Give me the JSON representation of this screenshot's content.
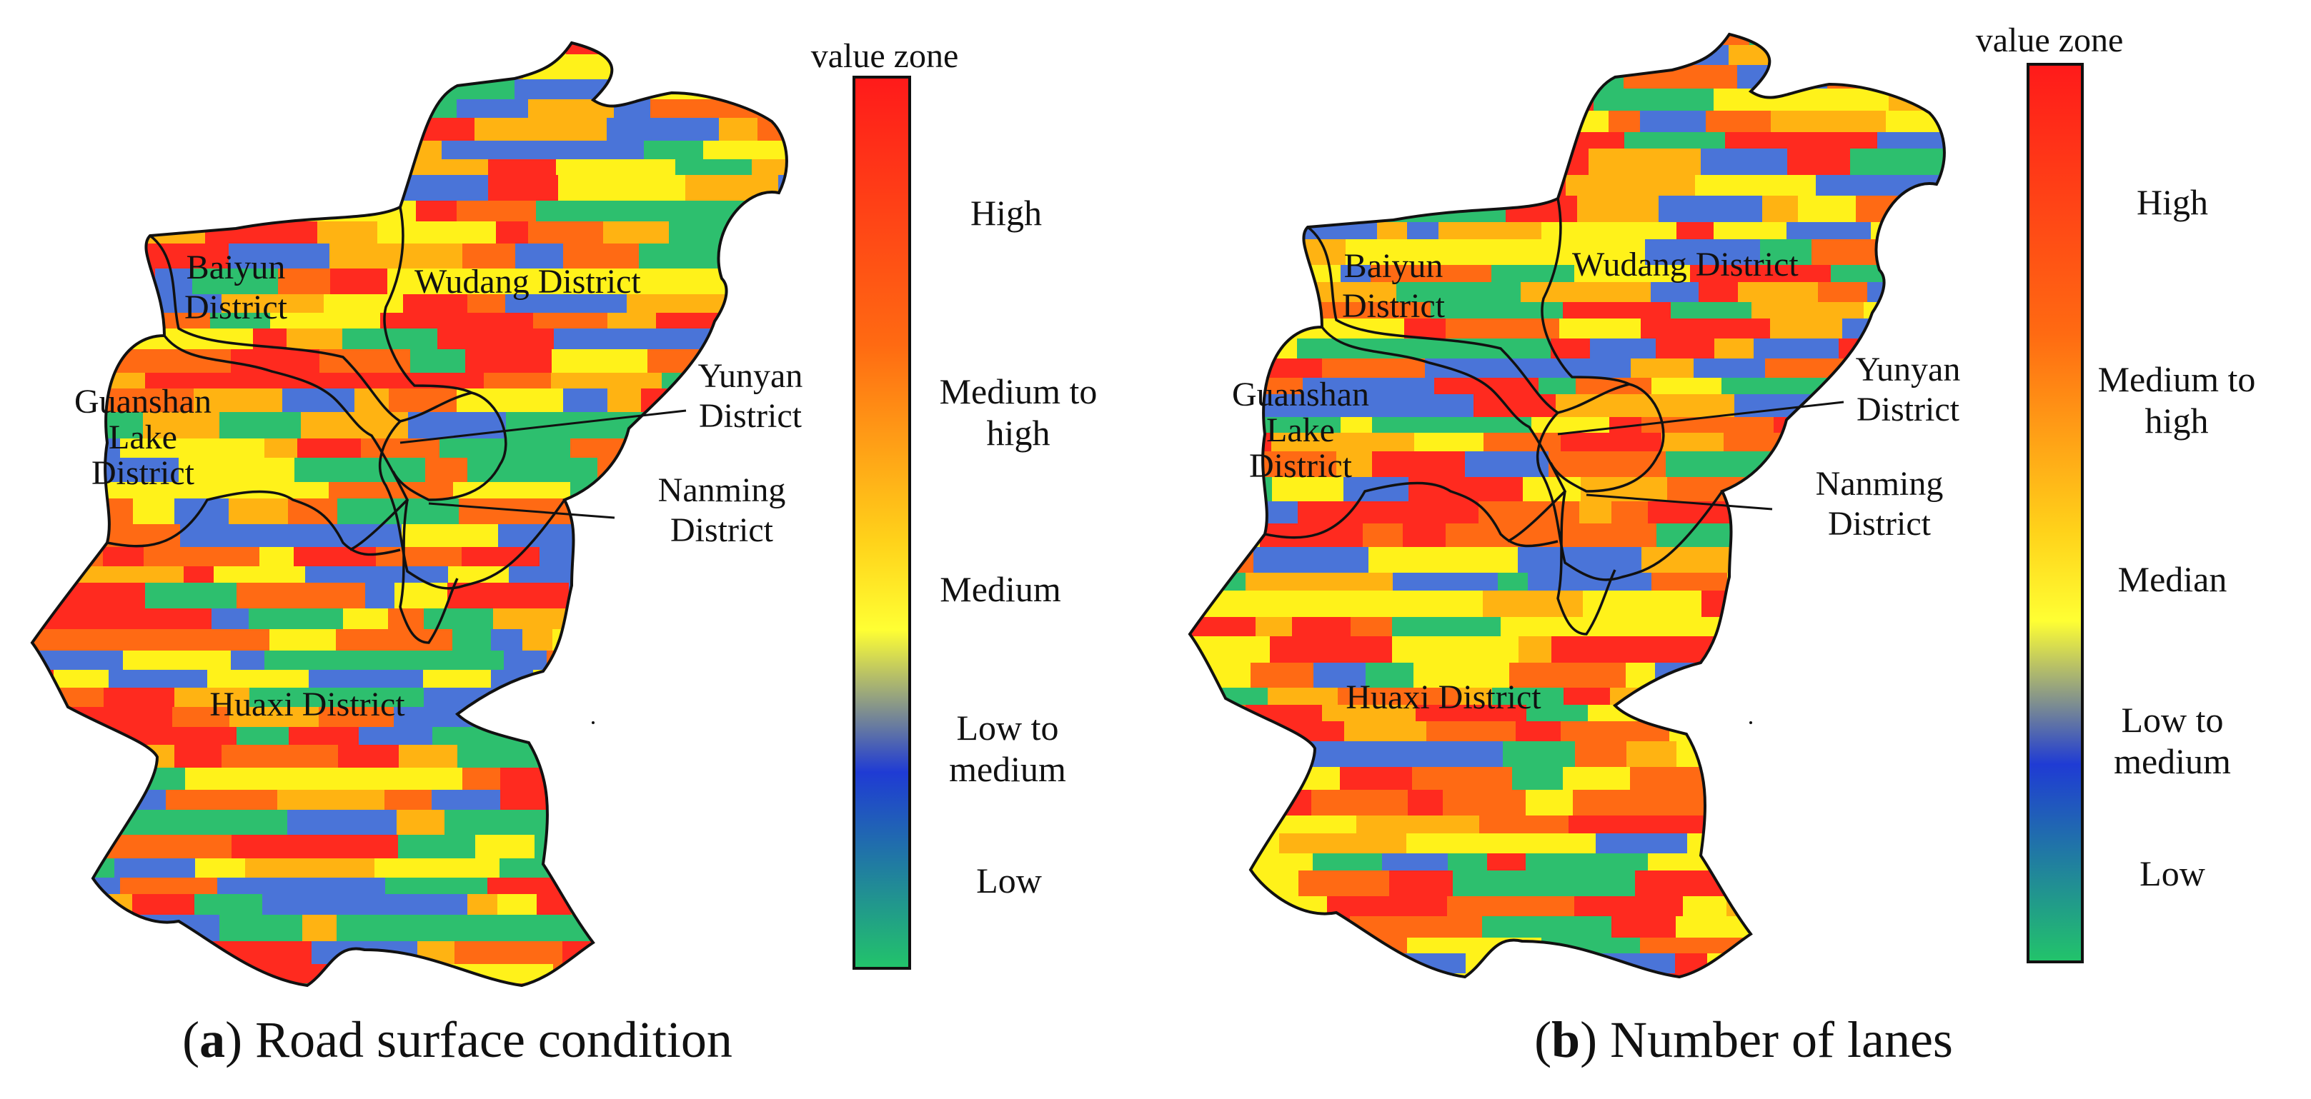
{
  "panels": [
    {
      "id": "a",
      "caption_letter": "a",
      "caption_text": "Road surface condition",
      "legend_title": "value zone",
      "legend_levels": [
        "High",
        "Medium to high",
        "Medium",
        "Low to medium",
        "Low"
      ],
      "districts": [
        "Baiyun District",
        "Wudang District",
        "Guanshan Lake District",
        "Yunyan District",
        "Nanming District",
        "Huaxi District"
      ],
      "palette": [
        "#ff2a1f",
        "#ff6a14",
        "#ffb312",
        "#fff21a",
        "#4a74d8",
        "#2dbf6e"
      ]
    },
    {
      "id": "b",
      "caption_letter": "b",
      "caption_text": "Number of lanes",
      "legend_title": "value zone",
      "legend_levels": [
        "High",
        "Medium to high",
        "Median",
        "Low to medium",
        "Low"
      ],
      "districts": [
        "Baiyun District",
        "Wudang District",
        "Guanshan Lake District",
        "Yunyan District",
        "Nanming District",
        "Huaxi District"
      ],
      "palette": [
        "#ff2a1f",
        "#ff6a14",
        "#ffb312",
        "#fff21a",
        "#4a74d8",
        "#2dbf6e"
      ]
    }
  ],
  "gradient_colors": [
    "#ff1a1a",
    "#ff7a12",
    "#ffe614",
    "#ffff33",
    "#1f3bd4",
    "#22c46a"
  ]
}
